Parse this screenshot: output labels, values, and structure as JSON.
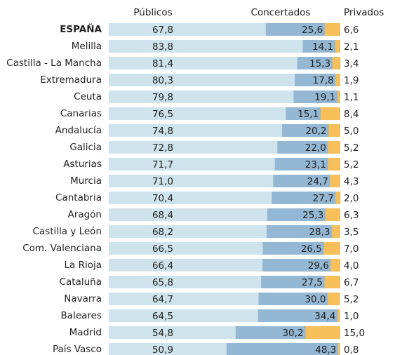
{
  "chart_data": {
    "type": "stacked-bar-horizontal",
    "categories": [
      "ESPAÑA",
      "Melilla",
      "Castilla - La Mancha",
      "Extremadura",
      "Ceuta",
      "Canarias",
      "Andalucía",
      "Galicia",
      "Asturias",
      "Murcia",
      "Cantabria",
      "Aragón",
      "Castilla y León",
      "Com. Valenciana",
      "La Rioja",
      "Cataluña",
      "Navarra",
      "Baleares",
      "Madrid",
      "País Vasco"
    ],
    "xlim": [
      0,
      100
    ],
    "series": [
      {
        "name": "Públicos",
        "color": "#cfe3ec",
        "values": [
          67.8,
          83.8,
          81.4,
          80.3,
          79.8,
          76.5,
          74.8,
          72.8,
          71.7,
          71.0,
          70.4,
          68.4,
          68.2,
          66.5,
          66.4,
          65.8,
          64.7,
          64.5,
          54.8,
          50.9
        ],
        "value_labels": [
          "67,8",
          "83,8",
          "81,4",
          "80,3",
          "79,8",
          "76,5",
          "74,8",
          "72,8",
          "71,7",
          "71,0",
          "70,4",
          "68,4",
          "68,2",
          "66,5",
          "66,4",
          "65,8",
          "64,7",
          "64,5",
          "54,8",
          "50,9"
        ]
      },
      {
        "name": "Concertados",
        "color": "#94b7d3",
        "values": [
          25.6,
          14.1,
          15.3,
          17.8,
          19.1,
          15.1,
          20.2,
          22.0,
          23.1,
          24.7,
          27.7,
          25.3,
          28.3,
          26.5,
          29.6,
          27.5,
          30.0,
          34.4,
          30.2,
          48.3
        ],
        "value_labels": [
          "25,6",
          "14,1",
          "15,3",
          "17,8",
          "19,1",
          "15,1",
          "20,2",
          "22,0",
          "23,1",
          "24,7",
          "27,7",
          "25,3",
          "28,3",
          "26,5",
          "29,6",
          "27,5",
          "30,0",
          "34,4",
          "30,2",
          "48,3"
        ]
      },
      {
        "name": "Privados",
        "color": "#f7bf5a",
        "values": [
          6.6,
          2.1,
          3.4,
          1.9,
          1.1,
          8.4,
          5.0,
          5.2,
          5.2,
          4.3,
          2.0,
          6.3,
          3.5,
          7.0,
          4.0,
          6.7,
          5.2,
          1.0,
          15.0,
          0.8
        ],
        "value_labels": [
          "6,6",
          "2,1",
          "3,4",
          "1,9",
          "1,1",
          "8,4",
          "5,0",
          "5,2",
          "5,2",
          "4,3",
          "2,0",
          "6,3",
          "3,5",
          "7,0",
          "4,0",
          "6,7",
          "5,2",
          "1,0",
          "15,0",
          "0,8"
        ]
      }
    ]
  }
}
